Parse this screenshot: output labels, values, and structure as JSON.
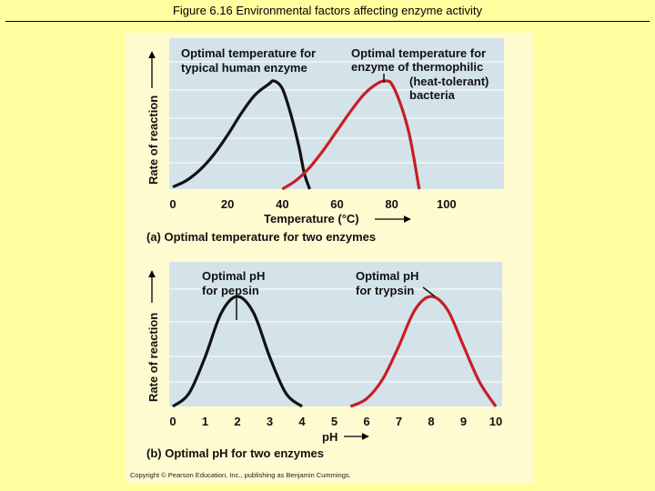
{
  "slide": {
    "title": "Figure 6.16 Environmental factors affecting enzyme activity",
    "copyright": "Copyright © Pearson Education, Inc., publishing as Benjamin Cummings."
  },
  "colors": {
    "background": "#ffffa0",
    "plot": "#d4e3ea",
    "human": "#111111",
    "thermophile": "#c81e24"
  },
  "chart_data": [
    {
      "type": "line",
      "title": "(a) Optimal temperature for two enzymes",
      "xlabel": "Temperature (°C)",
      "ylabel": "Rate of reaction",
      "xlim": [
        0,
        120
      ],
      "xticks": [
        0,
        20,
        40,
        60,
        80,
        100
      ],
      "ylim": [
        0,
        1
      ],
      "series": [
        {
          "name": "typical human enzyme",
          "x": [
            0,
            5,
            10,
            15,
            20,
            25,
            30,
            35,
            37,
            40,
            43,
            46,
            48,
            50
          ],
          "y": [
            0.02,
            0.08,
            0.18,
            0.32,
            0.5,
            0.7,
            0.87,
            0.97,
            1.0,
            0.93,
            0.7,
            0.4,
            0.15,
            0.0
          ]
        },
        {
          "name": "enzyme of thermophilic (heat-tolerant) bacteria",
          "x": [
            40,
            45,
            50,
            55,
            60,
            65,
            70,
            75,
            78,
            80,
            83,
            86,
            88,
            90
          ],
          "y": [
            0.0,
            0.08,
            0.2,
            0.36,
            0.54,
            0.72,
            0.88,
            0.98,
            1.0,
            0.97,
            0.8,
            0.55,
            0.3,
            0.0
          ]
        }
      ],
      "annotations": [
        {
          "label": "Optimal temperature for typical human enzyme",
          "x": 37
        },
        {
          "label": "Optimal temperature for enzyme of thermophilic (heat-tolerant) bacteria",
          "x": 78
        }
      ],
      "grid": "horizontal"
    },
    {
      "type": "line",
      "title": "(b) Optimal pH for two enzymes",
      "xlabel": "pH",
      "ylabel": "Rate of reaction",
      "xlim": [
        0,
        10
      ],
      "xticks": [
        0,
        1,
        2,
        3,
        4,
        5,
        6,
        7,
        8,
        9,
        10
      ],
      "ylim": [
        0,
        1
      ],
      "series": [
        {
          "name": "pepsin",
          "x": [
            0,
            0.5,
            1,
            1.5,
            2,
            2.5,
            3,
            3.5,
            4
          ],
          "y": [
            0.0,
            0.12,
            0.45,
            0.85,
            1.0,
            0.85,
            0.45,
            0.12,
            0.0
          ]
        },
        {
          "name": "trypsin",
          "x": [
            5.5,
            6,
            6.5,
            7,
            7.5,
            8,
            8.5,
            9,
            9.5,
            10
          ],
          "y": [
            0.0,
            0.07,
            0.25,
            0.55,
            0.88,
            1.0,
            0.88,
            0.55,
            0.22,
            0.0
          ]
        }
      ],
      "annotations": [
        {
          "label": "Optimal pH for pepsin",
          "x": 2
        },
        {
          "label": "Optimal pH for trypsin",
          "x": 8
        }
      ],
      "grid": "horizontal"
    }
  ],
  "labels": {
    "a_human_line1": "Optimal temperature for",
    "a_human_line2": "typical human enzyme",
    "a_thermo_line1": "Optimal temperature for",
    "a_thermo_line2": "enzyme of thermophilic",
    "a_thermo_line3": "(heat-tolerant)",
    "a_thermo_line4": "bacteria",
    "b_pepsin_line1": "Optimal pH",
    "b_pepsin_line2": "for pepsin",
    "b_trypsin_line1": "Optimal pH",
    "b_trypsin_line2": "for trypsin"
  }
}
